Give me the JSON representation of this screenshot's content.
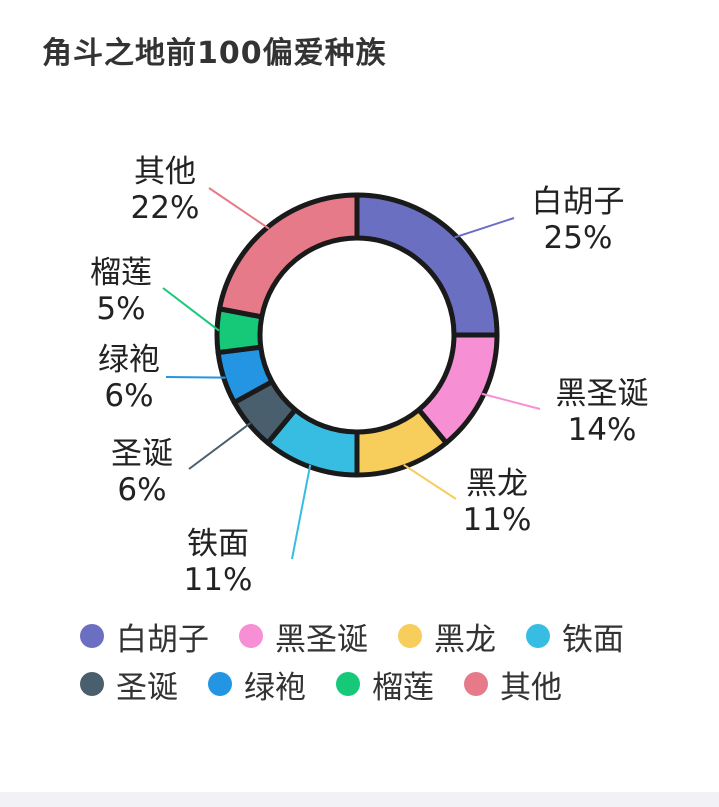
{
  "chart_data": {
    "type": "pie",
    "title": "角斗之地前100偏爱种族",
    "categories": [
      "白胡子",
      "黑圣诞",
      "黑龙",
      "铁面",
      "圣诞",
      "绿袍",
      "榴莲",
      "其他"
    ],
    "values": [
      25,
      14,
      11,
      11,
      6,
      6,
      5,
      22
    ],
    "value_labels": [
      "25%",
      "14%",
      "11%",
      "11%",
      "6%",
      "6%",
      "5%",
      "22%"
    ],
    "colors": [
      "#6a6fc2",
      "#f78fd4",
      "#f7cd5b",
      "#38bde2",
      "#4a5f6e",
      "#2495e3",
      "#15c978",
      "#e77a88"
    ],
    "donut": true,
    "legend_position": "bottom"
  }
}
